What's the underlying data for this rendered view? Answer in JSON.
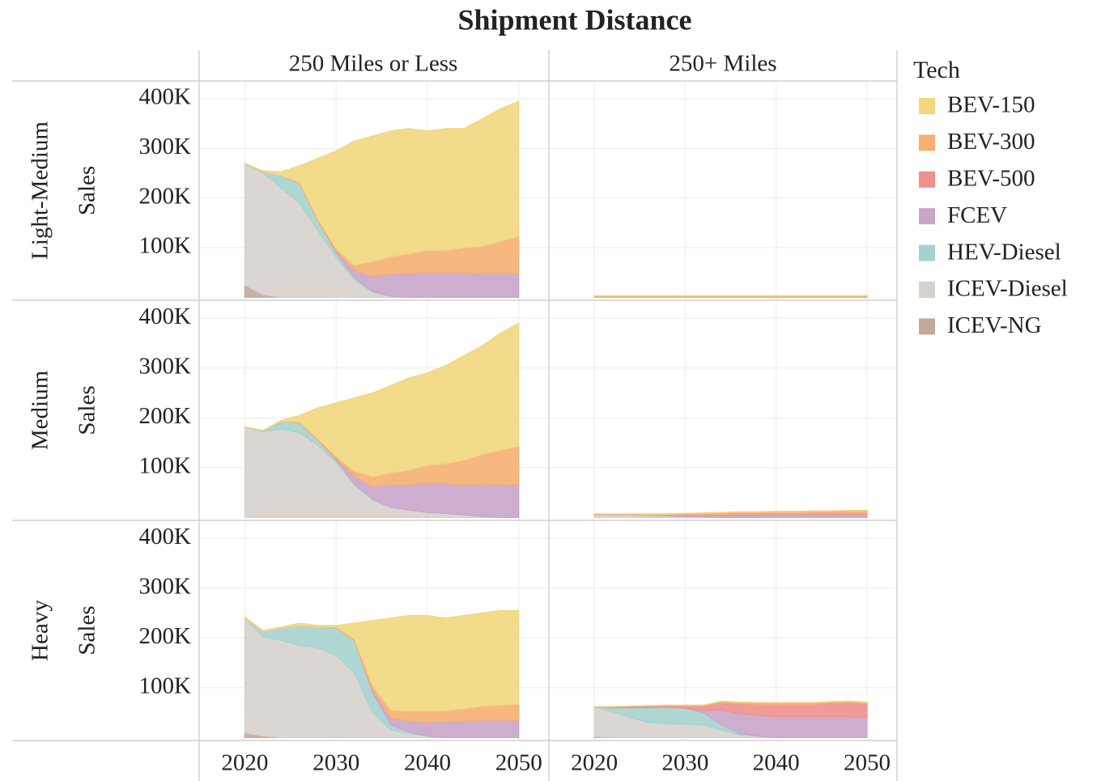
{
  "chart_data": {
    "type": "area",
    "stacked": true,
    "title": "Shipment Distance",
    "columns": [
      "250 Miles or Less",
      "250+ Miles"
    ],
    "rows": [
      "Light-Medium",
      "Medium",
      "Heavy"
    ],
    "ylabel": "Sales",
    "legend_title": "Tech",
    "legend": "right",
    "grid": true,
    "x": [
      2020,
      2022,
      2024,
      2026,
      2028,
      2030,
      2032,
      2034,
      2036,
      2038,
      2040,
      2042,
      2044,
      2046,
      2048,
      2050
    ],
    "xlim": [
      2015,
      2053.3
    ],
    "xticks": [
      2020,
      2030,
      2040,
      2050
    ],
    "ylim": [
      -6000,
      436000
    ],
    "yticks": [
      {
        "value": 100000,
        "label": "100K"
      },
      {
        "value": 200000,
        "label": "200K"
      },
      {
        "value": 300000,
        "label": "300K"
      },
      {
        "value": 400000,
        "label": "400K"
      }
    ],
    "series": [
      {
        "name": "BEV-150",
        "color": "#f2d77f"
      },
      {
        "name": "BEV-300",
        "color": "#f5b071"
      },
      {
        "name": "BEV-500",
        "color": "#ef8f8f"
      },
      {
        "name": "FCEV",
        "color": "#c9a5c9"
      },
      {
        "name": "HEV-Diesel",
        "color": "#a5d3cf"
      },
      {
        "name": "ICEV-Diesel",
        "color": "#d7d1cd"
      },
      {
        "name": "ICEV-NG",
        "color": "#c4a898"
      }
    ],
    "panels": [
      [
        {
          "values": [
            [
              0,
              2000,
              8000,
              33000,
              122000,
              197000,
              250000,
              253000,
              253000,
              252000,
              240000,
              245000,
              240000,
              257000,
              267000,
              272000
            ],
            [
              0,
              0,
              0,
              2000,
              3000,
              5000,
              10000,
              30000,
              35000,
              40000,
              45000,
              45000,
              50000,
              55000,
              65000,
              75000
            ],
            [
              0,
              0,
              0,
              0,
              0,
              0,
              0,
              0,
              0,
              0,
              0,
              0,
              0,
              0,
              0,
              0
            ],
            [
              0,
              0,
              0,
              0,
              0,
              3000,
              15000,
              30000,
              45000,
              48000,
              50000,
              50000,
              50000,
              48000,
              48000,
              48000
            ],
            [
              0,
              3000,
              25000,
              40000,
              20000,
              10000,
              5000,
              2000,
              0,
              0,
              0,
              0,
              0,
              0,
              0,
              0
            ],
            [
              245000,
              245000,
              220000,
              190000,
              135000,
              80000,
              35000,
              10000,
              2000,
              0,
              0,
              0,
              0,
              0,
              0,
              0
            ],
            [
              25000,
              5000,
              0,
              0,
              0,
              0,
              0,
              0,
              0,
              0,
              0,
              0,
              0,
              0,
              0,
              0
            ]
          ]
        },
        {
          "values": [
            [
              0,
              0,
              0,
              0,
              0,
              0,
              0,
              0,
              0,
              0,
              0,
              0,
              0,
              0,
              0,
              0
            ],
            [
              3000,
              3000,
              3000,
              3000,
              3000,
              3000,
              3000,
              3000,
              3000,
              3000,
              3000,
              3000,
              3000,
              3000,
              3000,
              3000
            ],
            [
              0,
              0,
              0,
              0,
              0,
              0,
              0,
              0,
              0,
              0,
              0,
              0,
              0,
              0,
              0,
              0
            ],
            [
              0,
              0,
              0,
              0,
              0,
              0,
              0,
              0,
              0,
              0,
              0,
              0,
              0,
              0,
              0,
              0
            ],
            [
              0,
              0,
              0,
              0,
              0,
              0,
              0,
              0,
              0,
              0,
              0,
              0,
              0,
              0,
              0,
              0
            ],
            [
              0,
              0,
              0,
              0,
              0,
              0,
              0,
              0,
              0,
              0,
              0,
              0,
              0,
              0,
              0,
              0
            ],
            [
              0,
              0,
              0,
              0,
              0,
              0,
              0,
              0,
              0,
              0,
              0,
              0,
              0,
              0,
              0,
              0
            ]
          ]
        }
      ],
      [
        {
          "values": [
            [
              0,
              1000,
              2000,
              13000,
              62000,
              107000,
              147000,
              168000,
              175000,
              185000,
              185000,
              197000,
              210000,
              218000,
              235000,
              247000
            ],
            [
              0,
              0,
              0,
              2000,
              3000,
              5000,
              10000,
              20000,
              25000,
              30000,
              35000,
              40000,
              50000,
              60000,
              70000,
              78000
            ],
            [
              0,
              0,
              0,
              0,
              0,
              0,
              0,
              0,
              0,
              0,
              0,
              0,
              0,
              0,
              0,
              0
            ],
            [
              0,
              0,
              0,
              0,
              0,
              3000,
              15000,
              25000,
              45000,
              50000,
              60000,
              60000,
              60000,
              65000,
              65000,
              65000
            ],
            [
              0,
              2000,
              15000,
              20000,
              10000,
              5000,
              3000,
              2000,
              0,
              0,
              0,
              0,
              0,
              0,
              0,
              0
            ],
            [
              182000,
              172000,
              178000,
              170000,
              145000,
              110000,
              65000,
              35000,
              20000,
              15000,
              10000,
              8000,
              5000,
              2000,
              0,
              0
            ],
            [
              0,
              0,
              0,
              0,
              0,
              0,
              0,
              0,
              0,
              0,
              0,
              0,
              0,
              0,
              0,
              0
            ]
          ]
        },
        {
          "values": [
            [
              0,
              0,
              0,
              0,
              0,
              0,
              0,
              0,
              0,
              0,
              0,
              0,
              0,
              0,
              0,
              0
            ],
            [
              2000,
              2000,
              2000,
              3000,
              3000,
              3000,
              4000,
              4000,
              4000,
              4000,
              5000,
              5000,
              5000,
              5000,
              6000,
              6000
            ],
            [
              0,
              0,
              0,
              0,
              0,
              1000,
              1000,
              2000,
              2000,
              2000,
              2000,
              2000,
              2000,
              2000,
              2000,
              2000
            ],
            [
              0,
              0,
              0,
              0,
              1000,
              2000,
              3000,
              4000,
              5000,
              5000,
              5000,
              5000,
              6000,
              6000,
              6000,
              6000
            ],
            [
              0,
              0,
              0,
              0,
              0,
              0,
              0,
              0,
              0,
              0,
              0,
              0,
              0,
              0,
              0,
              0
            ],
            [
              5000,
              5000,
              5000,
              4000,
              3000,
              2000,
              1000,
              0,
              0,
              0,
              0,
              0,
              0,
              0,
              0,
              0
            ],
            [
              0,
              0,
              0,
              0,
              0,
              0,
              0,
              0,
              0,
              0,
              0,
              0,
              0,
              0,
              0,
              0
            ]
          ]
        }
      ],
      [
        {
          "values": [
            [
              2000,
              2000,
              2000,
              5000,
              3000,
              3000,
              32000,
              130000,
              185000,
              192000,
              192000,
              186000,
              187000,
              187000,
              190000,
              188000
            ],
            [
              0,
              0,
              0,
              0,
              0,
              2000,
              3000,
              10000,
              15000,
              20000,
              22000,
              22000,
              25000,
              28000,
              30000,
              32000
            ],
            [
              0,
              0,
              0,
              0,
              0,
              0,
              0,
              0,
              0,
              0,
              0,
              0,
              0,
              0,
              0,
              0
            ],
            [
              0,
              0,
              0,
              0,
              0,
              0,
              0,
              5000,
              15000,
              22000,
              28000,
              32000,
              33000,
              35000,
              35000,
              35000
            ],
            [
              0,
              10000,
              25000,
              40000,
              42000,
              55000,
              65000,
              40000,
              10000,
              3000,
              0,
              0,
              0,
              0,
              0,
              0
            ],
            [
              230000,
              200000,
              195000,
              185000,
              180000,
              165000,
              130000,
              50000,
              15000,
              8000,
              3000,
              0,
              0,
              0,
              0,
              0
            ],
            [
              10000,
              3000,
              0,
              0,
              0,
              0,
              0,
              0,
              0,
              0,
              0,
              0,
              0,
              0,
              0,
              0
            ]
          ]
        },
        {
          "values": [
            [
              0,
              0,
              0,
              0,
              0,
              0,
              0,
              0,
              0,
              0,
              0,
              0,
              0,
              0,
              0,
              0
            ],
            [
              0,
              0,
              0,
              1000,
              1000,
              1000,
              2000,
              3000,
              3000,
              3000,
              3000,
              3000,
              3000,
              3000,
              3000,
              3000
            ],
            [
              0,
              2000,
              3000,
              3000,
              3000,
              5000,
              8000,
              15000,
              20000,
              22000,
              25000,
              25000,
              25000,
              27000,
              28000,
              28000
            ],
            [
              0,
              0,
              0,
              0,
              0,
              0,
              5000,
              30000,
              40000,
              42000,
              42000,
              42000,
              42000,
              42000,
              42000,
              40000
            ],
            [
              0,
              8000,
              20000,
              30000,
              33000,
              32000,
              25000,
              10000,
              3000,
              0,
              0,
              0,
              0,
              0,
              0,
              0
            ],
            [
              60000,
              52000,
              40000,
              30000,
              28000,
              27000,
              25000,
              15000,
              5000,
              3000,
              0,
              0,
              0,
              0,
              0,
              0
            ],
            [
              2000,
              0,
              0,
              0,
              0,
              0,
              0,
              0,
              0,
              0,
              0,
              0,
              0,
              0,
              0,
              0
            ]
          ]
        }
      ]
    ]
  }
}
